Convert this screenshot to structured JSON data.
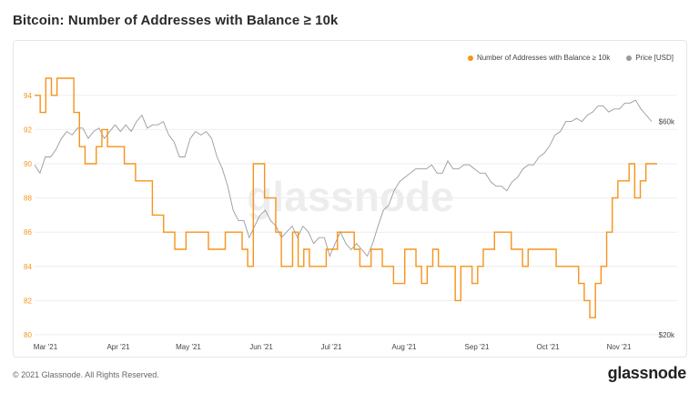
{
  "title": "Bitcoin: Number of Addresses with Balance ≥ 10k",
  "footer": "© 2021 Glassnode. All Rights Reserved.",
  "brand": "glassnode",
  "watermark": "glassnode",
  "colors": {
    "addresses": "#f7931a",
    "price": "#9a9a9a",
    "grid": "#eeeeee"
  },
  "chart_data": {
    "type": "line",
    "title": "Bitcoin: Number of Addresses with Balance ≥ 10k",
    "grid": true,
    "legend": "top-right",
    "x_ticks": [
      "Mar '21",
      "Apr '21",
      "May '21",
      "Jun '21",
      "Jul '21",
      "Aug '21",
      "Sep '21",
      "Oct '21",
      "Nov '21"
    ],
    "y_left": {
      "ticks": [
        "80",
        "82",
        "84",
        "86",
        "88",
        "90",
        "92",
        "94"
      ],
      "range": [
        80,
        95
      ]
    },
    "y_right": {
      "ticks": [
        "$20k",
        "$60k"
      ],
      "scale": "log"
    },
    "series": [
      {
        "name": "Number of Addresses with Balance ≥ 10k",
        "axis": "left",
        "color": "#f7931a",
        "values": [
          94,
          93,
          95,
          94,
          95,
          95,
          95,
          93,
          91,
          90,
          90,
          91,
          92,
          91,
          91,
          91,
          90,
          90,
          89,
          89,
          89,
          87,
          87,
          86,
          86,
          85,
          85,
          86,
          86,
          86,
          86,
          85,
          85,
          85,
          86,
          86,
          86,
          85,
          84,
          90,
          90,
          88,
          88,
          86,
          84,
          84,
          86,
          84,
          85,
          84,
          84,
          84,
          85,
          85,
          86,
          86,
          86,
          85,
          84,
          84,
          85,
          85,
          84,
          84,
          83,
          83,
          85,
          85,
          84,
          83,
          84,
          85,
          84,
          84,
          84,
          82,
          84,
          84,
          83,
          84,
          85,
          85,
          86,
          86,
          86,
          85,
          85,
          84,
          85,
          85,
          85,
          85,
          85,
          84,
          84,
          84,
          84,
          83,
          82,
          81,
          83,
          84,
          86,
          88,
          89,
          89,
          90,
          88,
          89,
          90,
          90,
          90
        ]
      },
      {
        "name": "Price [USD]",
        "axis": "right",
        "color": "#9a9a9a",
        "values": [
          48000,
          46000,
          50000,
          50000,
          52000,
          55000,
          57000,
          56000,
          58000,
          58000,
          55000,
          57000,
          58000,
          55000,
          57000,
          59000,
          57000,
          59000,
          57000,
          60000,
          62000,
          58000,
          59000,
          59000,
          60000,
          56000,
          54000,
          50000,
          50000,
          55000,
          57000,
          56000,
          57000,
          55000,
          50000,
          47000,
          43000,
          38000,
          36000,
          36000,
          33000,
          35000,
          37000,
          38000,
          36000,
          35000,
          33000,
          34000,
          35000,
          33000,
          35000,
          34000,
          32000,
          33000,
          33000,
          30000,
          32000,
          34000,
          32000,
          31000,
          32000,
          31000,
          30000,
          32000,
          35000,
          38000,
          39000,
          42000,
          44000,
          45000,
          46000,
          47000,
          47000,
          47000,
          48000,
          46000,
          46000,
          49000,
          47000,
          47000,
          48000,
          48000,
          47000,
          46000,
          46000,
          44000,
          43000,
          43000,
          42000,
          44000,
          45000,
          47000,
          48000,
          48000,
          50000,
          51000,
          53000,
          56000,
          57000,
          60000,
          60000,
          61000,
          60000,
          62000,
          63000,
          65000,
          65000,
          63000,
          64000,
          64000,
          66000,
          66000,
          67000,
          64000,
          62000,
          60000
        ]
      }
    ]
  },
  "legend_items": [
    {
      "label": "Number of Addresses with Balance ≥ 10k",
      "color": "#f7931a"
    },
    {
      "label": "Price [USD]",
      "color": "#9a9a9a"
    }
  ]
}
